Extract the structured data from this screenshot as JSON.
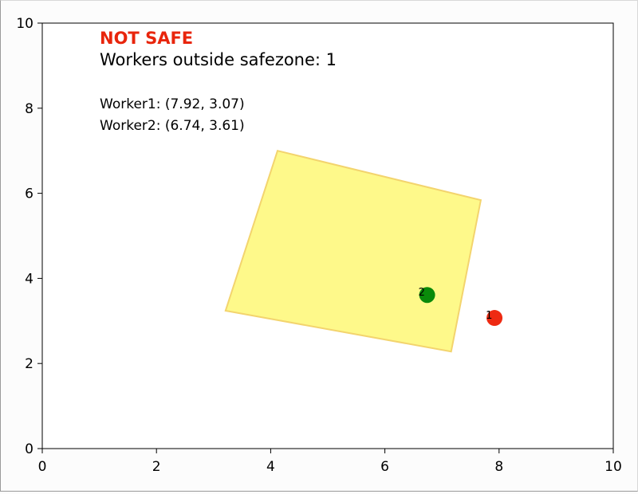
{
  "status": {
    "label": "NOT SAFE",
    "color": "#e8250c"
  },
  "summary": "Workers outside safezone: 1",
  "worker_lines": [
    "Worker1: (7.92, 3.07)",
    "Worker2: (6.74, 3.61)"
  ],
  "chart_data": {
    "type": "scatter",
    "title": "",
    "xlabel": "",
    "ylabel": "",
    "xlim": [
      0,
      10
    ],
    "ylim": [
      0,
      10
    ],
    "xticks": [
      0,
      2,
      4,
      6,
      8,
      10
    ],
    "yticks": [
      0,
      2,
      4,
      6,
      8,
      10
    ],
    "grid": false,
    "safezone": {
      "vertices": [
        [
          4.12,
          7.0
        ],
        [
          7.68,
          5.84
        ],
        [
          7.16,
          2.28
        ],
        [
          3.21,
          3.24
        ]
      ],
      "fill": "#fef98a",
      "edge": "#f3d46e"
    },
    "workers": [
      {
        "id": "1",
        "x": 7.92,
        "y": 3.07,
        "color": "#ee2a12",
        "safe": false
      },
      {
        "id": "2",
        "x": 6.74,
        "y": 3.61,
        "color": "#0a8a0a",
        "safe": true
      }
    ]
  }
}
